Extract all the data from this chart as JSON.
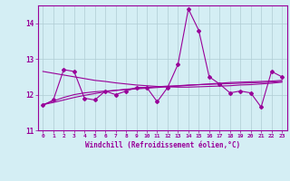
{
  "x": [
    0,
    1,
    2,
    3,
    4,
    5,
    6,
    7,
    8,
    9,
    10,
    11,
    12,
    13,
    14,
    15,
    16,
    17,
    18,
    19,
    20,
    21,
    22,
    23
  ],
  "y_main": [
    11.7,
    11.85,
    12.7,
    12.65,
    11.9,
    11.85,
    12.1,
    12.0,
    12.1,
    12.2,
    12.2,
    11.8,
    12.2,
    12.85,
    14.4,
    13.8,
    12.5,
    12.3,
    12.05,
    12.1,
    12.05,
    11.65,
    12.65,
    12.5
  ],
  "y_trend1": [
    12.65,
    12.6,
    12.55,
    12.5,
    12.45,
    12.4,
    12.37,
    12.33,
    12.3,
    12.27,
    12.25,
    12.23,
    12.22,
    12.21,
    12.21,
    12.22,
    12.23,
    12.24,
    12.25,
    12.27,
    12.28,
    12.3,
    12.32,
    12.35
  ],
  "y_trend2": [
    11.72,
    11.82,
    11.92,
    12.0,
    12.05,
    12.08,
    12.1,
    12.12,
    12.14,
    12.16,
    12.18,
    12.2,
    12.22,
    12.24,
    12.26,
    12.28,
    12.3,
    12.32,
    12.34,
    12.35,
    12.36,
    12.37,
    12.38,
    12.4
  ],
  "y_trend3": [
    11.72,
    11.78,
    11.85,
    11.92,
    11.98,
    12.03,
    12.08,
    12.12,
    12.15,
    12.18,
    12.2,
    12.22,
    12.24,
    12.25,
    12.27,
    12.28,
    12.29,
    12.3,
    12.31,
    12.32,
    12.33,
    12.34,
    12.35,
    12.37
  ],
  "line_color": "#990099",
  "bg_color": "#d4eef4",
  "grid_color": "#b0ccd4",
  "xlabel": "Windchill (Refroidissement éolien,°C)",
  "ylim": [
    11.0,
    14.5
  ],
  "xlim": [
    -0.5,
    23.5
  ],
  "yticks": [
    11,
    12,
    13,
    14
  ],
  "xticks": [
    0,
    1,
    2,
    3,
    4,
    5,
    6,
    7,
    8,
    9,
    10,
    11,
    12,
    13,
    14,
    15,
    16,
    17,
    18,
    19,
    20,
    21,
    22,
    23
  ]
}
